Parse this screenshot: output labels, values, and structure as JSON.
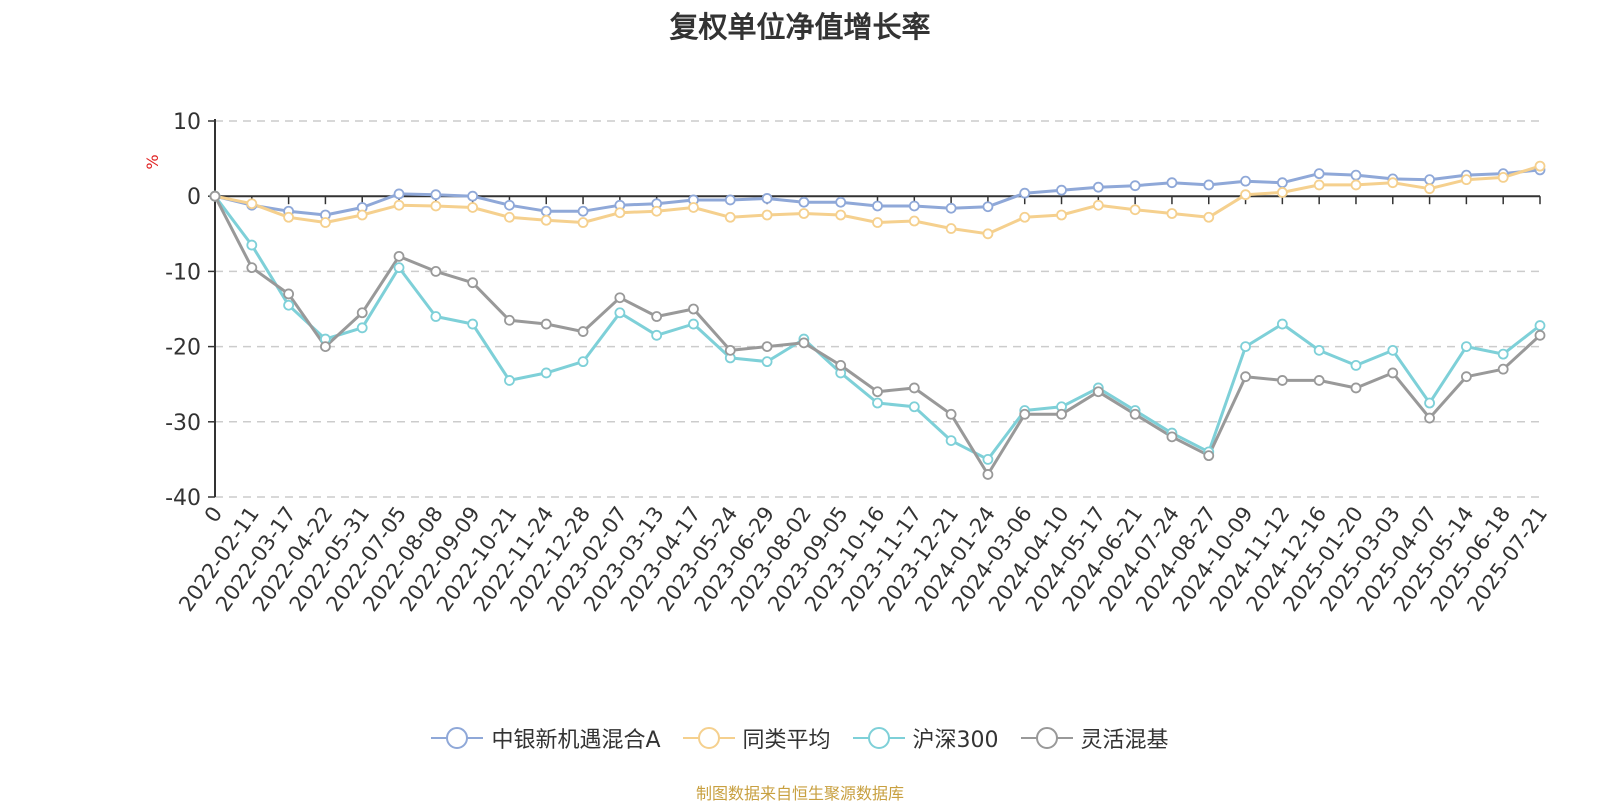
{
  "chart_data": {
    "type": "line",
    "title": "复权单位净值增长率",
    "ylabel": "%",
    "ylim": [
      -40,
      10
    ],
    "yticks": [
      10,
      0,
      -10,
      -20,
      -30,
      -40
    ],
    "grid": true,
    "legend_position": "bottom",
    "x_tick_labels": [
      "0",
      "2022-02-11",
      "2022-03-17",
      "2022-04-22",
      "2022-05-31",
      "2022-07-05",
      "2022-08-08",
      "2022-09-09",
      "2022-10-21",
      "2022-11-24",
      "2022-12-28",
      "2023-02-07",
      "2023-03-13",
      "2023-04-17",
      "2023-05-24",
      "2023-06-29",
      "2023-08-02",
      "2023-09-05",
      "2023-10-16",
      "2023-11-17",
      "2023-12-21",
      "2024-01-24",
      "2024-03-06",
      "2024-04-10",
      "2024-05-17",
      "2024-06-21",
      "2024-07-24",
      "2024-08-27",
      "2024-10-09",
      "2024-11-12",
      "2024-12-16",
      "2025-01-20",
      "2025-03-03",
      "2025-04-07",
      "2025-05-14",
      "2025-06-18",
      "2025-07-21"
    ],
    "series": [
      {
        "name": "中银新机遇混合A",
        "color": "#8fa8d8",
        "values": [
          0,
          -1.2,
          -2.0,
          -2.5,
          -1.5,
          0.3,
          0.2,
          0.0,
          -1.2,
          -2.0,
          -2.0,
          -1.2,
          -1.0,
          -0.5,
          -0.5,
          -0.3,
          -0.8,
          -0.8,
          -1.3,
          -1.3,
          -1.6,
          -1.4,
          0.4,
          0.8,
          1.2,
          1.4,
          1.8,
          1.5,
          2.0,
          1.8,
          3.0,
          2.8,
          2.3,
          2.2,
          2.8,
          3.0,
          3.5
        ]
      },
      {
        "name": "同类平均",
        "color": "#f5d08e",
        "values": [
          0,
          -1.0,
          -2.8,
          -3.5,
          -2.5,
          -1.2,
          -1.3,
          -1.5,
          -2.8,
          -3.2,
          -3.5,
          -2.2,
          -2.0,
          -1.5,
          -2.8,
          -2.5,
          -2.3,
          -2.5,
          -3.5,
          -3.3,
          -4.3,
          -5.0,
          -2.8,
          -2.5,
          -1.2,
          -1.8,
          -2.3,
          -2.8,
          0.2,
          0.5,
          1.5,
          1.5,
          1.8,
          1.0,
          2.2,
          2.5,
          4.0
        ]
      },
      {
        "name": "沪深300",
        "color": "#7ed0d8",
        "values": [
          0,
          -6.5,
          -14.5,
          -19.0,
          -17.5,
          -9.5,
          -16.0,
          -17.0,
          -24.5,
          -23.5,
          -22.0,
          -15.5,
          -18.5,
          -17.0,
          -21.5,
          -22.0,
          -19.0,
          -23.5,
          -27.5,
          -28.0,
          -32.5,
          -35.0,
          -28.5,
          -28.0,
          -25.5,
          -28.5,
          -31.5,
          -34.0,
          -20.0,
          -17.0,
          -20.5,
          -22.5,
          -20.5,
          -27.5,
          -20.0,
          -21.0,
          -17.2
        ]
      },
      {
        "name": "灵活混基",
        "color": "#999999",
        "values": [
          0,
          -9.5,
          -13.0,
          -20.0,
          -15.5,
          -8.0,
          -10.0,
          -11.5,
          -16.5,
          -17.0,
          -18.0,
          -13.5,
          -16.0,
          -15.0,
          -20.5,
          -20.0,
          -19.5,
          -22.5,
          -26.0,
          -25.5,
          -29.0,
          -37.0,
          -29.0,
          -29.0,
          -26.0,
          -29.0,
          -32.0,
          -34.5,
          -24.0,
          -24.5,
          -24.5,
          -25.5,
          -23.5,
          -29.5,
          -24.0,
          -23.0,
          -18.5
        ]
      }
    ]
  },
  "source_note": "制图数据来自恒生聚源数据库"
}
